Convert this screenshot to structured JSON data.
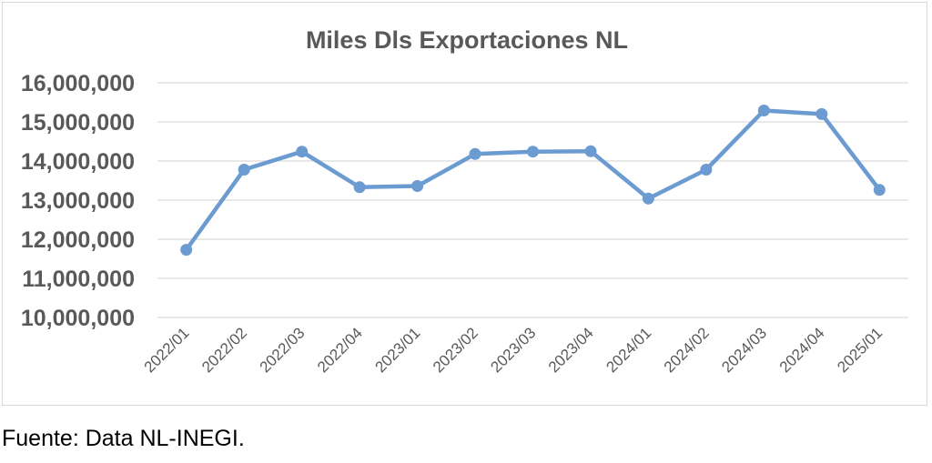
{
  "chart_data": {
    "type": "line",
    "title": "Miles Dls Exportaciones NL",
    "categories": [
      "2022/01",
      "2022/02",
      "2022/03",
      "2022/04",
      "2023/01",
      "2023/02",
      "2023/03",
      "2023/04",
      "2024/01",
      "2024/02",
      "2024/03",
      "2024/04",
      "2025/01"
    ],
    "series": [
      {
        "values": [
          11730000,
          13780000,
          14240000,
          13330000,
          13360000,
          14180000,
          14240000,
          14250000,
          13040000,
          13780000,
          15290000,
          15200000,
          13260000
        ],
        "color": "#6b9bd1"
      }
    ],
    "yticks": [
      "16,000,000",
      "15,000,000",
      "14,000,000",
      "13,000,000",
      "12,000,000",
      "11,000,000",
      "10,000,000"
    ],
    "ylim": [
      10000000,
      16000000
    ],
    "grid": true,
    "legend": "none"
  },
  "footer": {
    "source": "Fuente: Data NL-INEGI."
  }
}
